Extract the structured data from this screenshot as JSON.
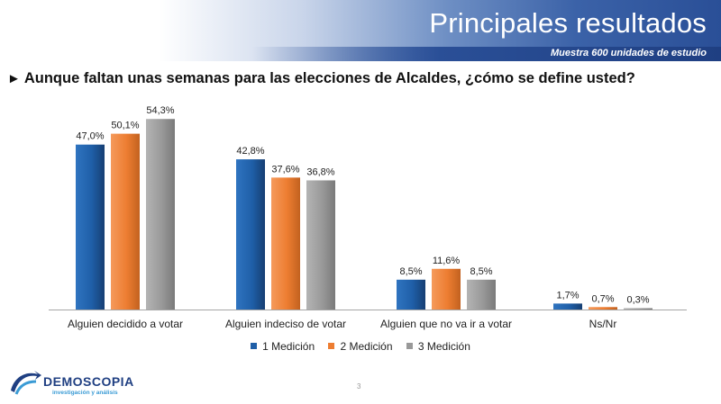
{
  "header": {
    "title": "Principales resultados",
    "subtitle": "Muestra 600 unidades de estudio"
  },
  "question": {
    "arrow": "►",
    "text": "Aunque faltan unas semanas para las elecciones de Alcaldes, ¿cómo se define usted?"
  },
  "chart_data": {
    "type": "bar",
    "categories": [
      "Alguien decidido a votar",
      "Alguien indeciso de votar",
      "Alguien que no va ir a votar",
      "Ns/Nr"
    ],
    "series": [
      {
        "name": "1 Medición",
        "values": [
          47.0,
          42.8,
          8.5,
          1.7
        ],
        "labels": [
          "47,0%",
          "42,8%",
          "8,5%",
          "1,7%"
        ],
        "color": "#1f5fa8"
      },
      {
        "name": "2 Medición",
        "values": [
          50.1,
          37.6,
          11.6,
          0.7
        ],
        "labels": [
          "50,1%",
          "37,6%",
          "11,6%",
          "0,7%"
        ],
        "color": "#ed7d31"
      },
      {
        "name": "3 Medición",
        "values": [
          54.3,
          36.8,
          8.5,
          0.3
        ],
        "labels": [
          "54,3%",
          "36,8%",
          "8,5%",
          "0,3%"
        ],
        "color": "#999999"
      }
    ],
    "legend_position": "bottom",
    "grid": false
  },
  "logo": {
    "name": "DEMOSCOPIA",
    "tagline": "investigación y análisis"
  },
  "page_number": "3",
  "colors": {
    "header_blue": "#2a4f97",
    "series_1": "#1f5fa8",
    "series_2": "#ed7d31",
    "series_3": "#999999"
  }
}
